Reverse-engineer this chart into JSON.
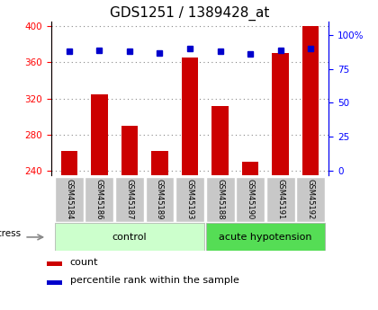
{
  "title": "GDS1251 / 1389428_at",
  "samples": [
    "GSM45184",
    "GSM45186",
    "GSM45187",
    "GSM45189",
    "GSM45193",
    "GSM45188",
    "GSM45190",
    "GSM45191",
    "GSM45192"
  ],
  "counts": [
    262,
    325,
    290,
    262,
    365,
    312,
    250,
    370,
    400
  ],
  "percentile_ranks": [
    88,
    89,
    88,
    87,
    90,
    88,
    86,
    89,
    90
  ],
  "ylim_left": [
    235,
    405
  ],
  "yticks_left": [
    240,
    280,
    320,
    360,
    400
  ],
  "ylim_right": [
    -3.5,
    110
  ],
  "yticks_right": [
    0,
    25,
    50,
    75,
    100
  ],
  "bar_color": "#cc0000",
  "dot_color": "#0000cc",
  "bar_bottom": 235,
  "tick_label_color": "#cccccc",
  "stress_label": "stress",
  "legend_count_label": "count",
  "legend_pct_label": "percentile rank within the sample",
  "title_fontsize": 11,
  "axis_fontsize": 8,
  "dotted_grid_color": "#888888",
  "control_color": "#ccffcc",
  "stress_color": "#55dd55",
  "group_border_color": "#aaaaaa"
}
